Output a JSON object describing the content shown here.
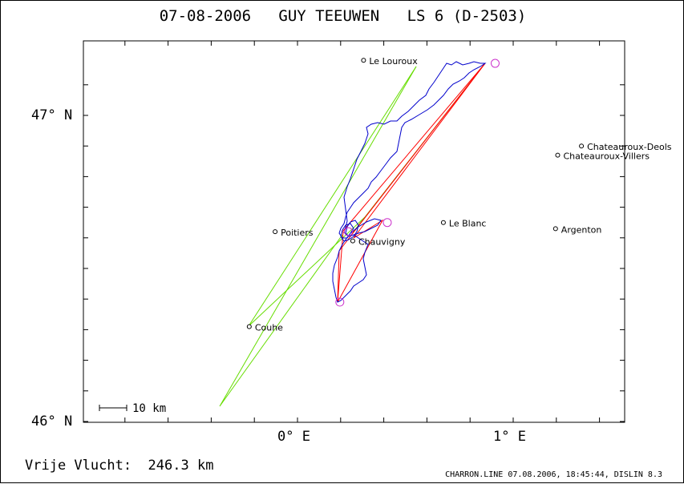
{
  "title": {
    "date": "07-08-2006",
    "pilot": "GUY TEEUWEN",
    "glider": "LS 6 (D-2503)"
  },
  "axes": {
    "y_labels": [
      "47° N",
      "46° N"
    ],
    "x_labels": [
      "0° E",
      "1° E"
    ]
  },
  "scale_bar": {
    "label": "10 km"
  },
  "footer": {
    "distance_label": "Vrije Vlucht:",
    "distance_value": "246.3 km",
    "credit": "CHARRON.LINE 07.08.2006, 18:45:44, DISLIN 8.3"
  },
  "colors": {
    "track": "#0000cc",
    "task_lines": "#ff0000",
    "assist_lines": "#66dd00",
    "olive_line": "#999900",
    "turnpoints": "#cc33cc"
  },
  "places": [
    {
      "name": "Le Louroux",
      "lon": 0.31,
      "lat": 47.18
    },
    {
      "name": "Chateauroux-Deols",
      "lon": 1.32,
      "lat": 46.9
    },
    {
      "name": "Chateauroux-Villers",
      "lon": 1.21,
      "lat": 46.87
    },
    {
      "name": "Le Blanc",
      "lon": 0.68,
      "lat": 46.65
    },
    {
      "name": "Argenton",
      "lon": 1.2,
      "lat": 46.63
    },
    {
      "name": "Poitiers",
      "lon": -0.1,
      "lat": 46.62
    },
    {
      "name": "Chauvigny",
      "lon": 0.26,
      "lat": 46.59
    },
    {
      "name": "Couhe",
      "lon": -0.22,
      "lat": 46.31
    }
  ],
  "turnpoints": [
    {
      "lon": 0.92,
      "lat": 47.17
    },
    {
      "lon": 0.42,
      "lat": 46.65
    },
    {
      "lon": 0.2,
      "lat": 46.39
    },
    {
      "lon": 0.24,
      "lat": 46.62
    }
  ]
}
